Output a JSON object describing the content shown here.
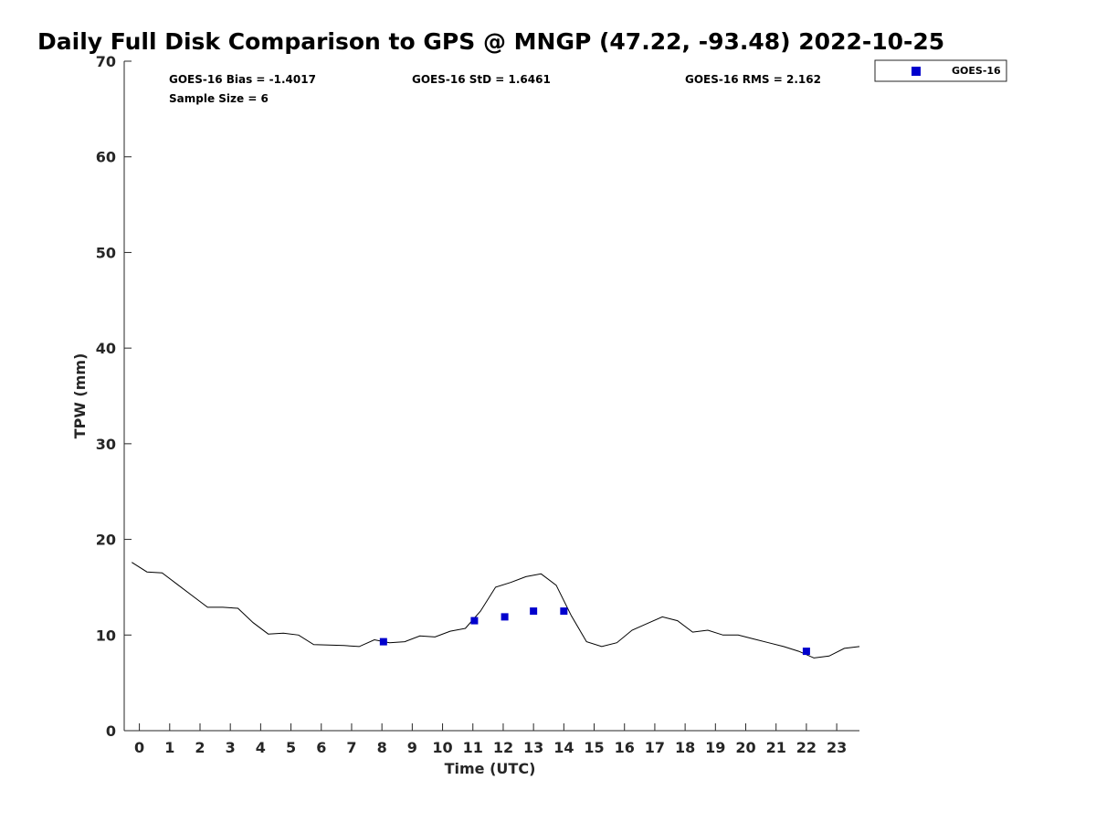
{
  "chart_data": {
    "type": "line",
    "title": "Daily Full Disk Comparison to GPS @ MNGP (47.22, -93.48) 2022-10-25",
    "xlabel": "Time (UTC)",
    "ylabel": "TPW (mm)",
    "xlim": [
      -0.5,
      23.75
    ],
    "ylim": [
      0,
      70
    ],
    "xticks": [
      0,
      1,
      2,
      3,
      4,
      5,
      6,
      7,
      8,
      9,
      10,
      11,
      12,
      13,
      14,
      15,
      16,
      17,
      18,
      19,
      20,
      21,
      22,
      23
    ],
    "yticks": [
      0,
      10,
      20,
      30,
      40,
      50,
      60,
      70
    ],
    "grid": false,
    "legend_position": "top-right, outside plot",
    "stats": {
      "bias": "GOES-16 Bias = -1.4017",
      "std": "GOES-16 StD = 1.6461",
      "rms": "GOES-16 RMS = 2.162",
      "sample": "Sample Size = 6"
    },
    "series": [
      {
        "kind": "line",
        "color": "#000000",
        "x": [
          -0.25,
          0.25,
          0.75,
          1.25,
          1.75,
          2.25,
          2.75,
          3.25,
          3.75,
          4.25,
          4.75,
          5.25,
          5.75,
          6.25,
          6.75,
          7.25,
          7.75,
          8.25,
          8.75,
          9.25,
          9.75,
          10.25,
          10.75,
          11.25,
          11.75,
          12.25,
          12.75,
          13.25,
          13.75,
          14.25,
          14.75,
          15.25,
          15.75,
          16.25,
          16.75,
          17.25,
          17.75,
          18.25,
          18.75,
          19.25,
          19.75,
          20.25,
          20.75,
          21.25,
          21.75,
          22.25,
          22.75,
          23.25,
          23.75
        ],
        "y": [
          17.6,
          16.6,
          16.5,
          15.3,
          14.1,
          12.9,
          12.9,
          12.8,
          11.3,
          10.1,
          10.2,
          10.0,
          9.0,
          8.95,
          8.9,
          8.8,
          9.5,
          9.2,
          9.3,
          9.9,
          9.8,
          10.4,
          10.7,
          12.5,
          15.0,
          15.5,
          16.1,
          16.4,
          15.2,
          12.0,
          9.3,
          8.8,
          9.2,
          10.5,
          11.2,
          11.9,
          11.5,
          10.3,
          10.5,
          10.0,
          10.0,
          9.6,
          9.2,
          8.8,
          8.3,
          7.6,
          7.8,
          8.6,
          8.8
        ]
      },
      {
        "name": "GOES-16",
        "kind": "scatter",
        "marker": "square",
        "color": "#0000CD",
        "x": [
          8.05,
          11.05,
          12.05,
          13.0,
          14.0,
          22.0
        ],
        "y": [
          9.3,
          11.5,
          11.9,
          12.5,
          12.5,
          8.3
        ]
      }
    ]
  }
}
